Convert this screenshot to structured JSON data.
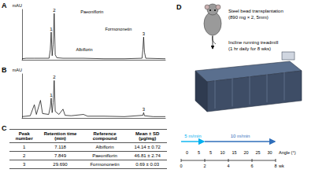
{
  "panel_labels": [
    "A",
    "B",
    "C",
    "D"
  ],
  "chart_data": [
    {
      "type": "line",
      "y_label": "mAU",
      "color": "#000000",
      "x": [
        0,
        1,
        3,
        5,
        6.6,
        6.9,
        7.118,
        7.35,
        7.6,
        7.849,
        8.1,
        8.5,
        10,
        15,
        20,
        25,
        29.3,
        29.5,
        29.69,
        29.9,
        30.2,
        35
      ],
      "values": [
        2,
        3,
        3,
        3,
        3,
        20,
        55,
        8,
        30,
        92,
        10,
        4,
        3,
        3,
        2,
        2,
        3,
        20,
        45,
        15,
        3,
        2
      ],
      "xlim": [
        0,
        35
      ],
      "ylim": [
        0,
        100
      ],
      "tick_labels": false,
      "grid": false,
      "peak_labels": [
        {
          "text": "1",
          "x": 7.118
        },
        {
          "text": "2",
          "x": 7.849
        },
        {
          "text": "3",
          "x": 29.69
        }
      ],
      "compound_labels": [
        {
          "text": "Albiflorin",
          "x": 7.118
        },
        {
          "text": "Paeoniflorin",
          "x": 7.849
        },
        {
          "text": "Formononetin",
          "x": 29.69
        }
      ]
    },
    {
      "type": "line",
      "y_label": "mAU",
      "color": "#000000",
      "x": [
        0,
        2,
        3,
        3.5,
        4.5,
        5,
        6.5,
        6.9,
        7.118,
        7.35,
        7.6,
        7.849,
        8.1,
        9,
        10,
        10.5,
        12,
        15,
        16,
        20,
        25,
        29.5,
        29.69,
        29.9,
        32,
        35
      ],
      "values": [
        3,
        5,
        30,
        8,
        40,
        10,
        8,
        25,
        45,
        12,
        35,
        85,
        15,
        8,
        20,
        6,
        5,
        8,
        4,
        4,
        3,
        6,
        12,
        5,
        3,
        3
      ],
      "xlim": [
        0,
        35
      ],
      "ylim": [
        0,
        100
      ],
      "tick_labels": false,
      "grid": false,
      "peak_labels": [
        {
          "text": "1",
          "x": 7.118
        },
        {
          "text": "2",
          "x": 7.849
        },
        {
          "text": "3",
          "x": 29.69
        }
      ]
    }
  ],
  "table": {
    "header": [
      "Peak number",
      "Retention time (min)",
      "Reference compound",
      "Mean ± SD (μg/mg)"
    ],
    "rows": [
      [
        "1",
        "7.118",
        "Albiflorin",
        "14.14 ± 0.72"
      ],
      [
        "2",
        "7.849",
        "Paeoniflorin",
        "46.81 ± 2.74"
      ],
      [
        "3",
        "29.690",
        "Formononetin",
        "0.69 ± 0.03"
      ]
    ]
  },
  "diagram": {
    "transplant": [
      "Steel bead transplantation",
      "(890 mg × 2, 5mm)"
    ],
    "treadmill": [
      "Incline running treadmill",
      "(1 hr daily for 8 wks)"
    ],
    "timeline": {
      "weeks": [
        0,
        2,
        4,
        6,
        8
      ],
      "unit": "wk",
      "angles": [
        0,
        5,
        5,
        10,
        15,
        20,
        25,
        30
      ],
      "angle_label": "Angle (°)",
      "speeds": [
        {
          "text": "5 m/min",
          "from": 0,
          "to": 2,
          "color": "#00b0f0"
        },
        {
          "text": "10 m/min",
          "from": 2,
          "to": 8,
          "color": "#2f6eba"
        }
      ]
    }
  }
}
